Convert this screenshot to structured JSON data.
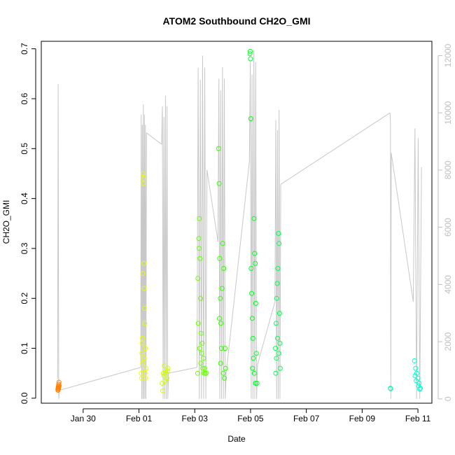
{
  "chart_data": {
    "type": "scatter",
    "title": "ATOM2 Southbound CH2O_GMI",
    "xlabel": "Date",
    "ylabel": "CH2O_GMI",
    "xlim": [
      "2017-01-28T12:00",
      "2017-02-11T12:00"
    ],
    "ylim": [
      -0.01,
      0.715
    ],
    "y2lim": [
      -150,
      12500
    ],
    "x_ticks": [
      {
        "date": "2017-01-30",
        "label": "Jan 30"
      },
      {
        "date": "2017-02-01",
        "label": "Feb 01"
      },
      {
        "date": "2017-02-03",
        "label": "Feb 03"
      },
      {
        "date": "2017-02-05",
        "label": "Feb 05"
      },
      {
        "date": "2017-02-07",
        "label": "Feb 07"
      },
      {
        "date": "2017-02-09",
        "label": "Feb 09"
      },
      {
        "date": "2017-02-11",
        "label": "Feb 11"
      }
    ],
    "y_ticks": [
      "0.0",
      "0.1",
      "0.2",
      "0.3",
      "0.4",
      "0.5",
      "0.6",
      "0.7"
    ],
    "y2_ticks": [
      "0",
      "2000",
      "4000",
      "6000",
      "8000",
      "10000",
      "12000"
    ],
    "grid": false,
    "colors": {
      "altitude": "#c8c8c8",
      "axis": "#000000",
      "right_axis": "#bebebe"
    },
    "altitude_flights": [
      {
        "start": "2017-01-29T02:00",
        "end": "2017-01-29T03:30",
        "peak": 11400,
        "entry": 700,
        "exit": 300,
        "spikes": 1
      },
      {
        "start": "2017-02-01T01:30",
        "end": "2017-02-01T06:30",
        "peak": 10300,
        "entry": 1100,
        "exit": 9300,
        "spikes": 5
      },
      {
        "start": "2017-02-01T19:30",
        "end": "2017-02-02T01:30",
        "peak": 10600,
        "entry": 8900,
        "exit": 900,
        "spikes": 4
      },
      {
        "start": "2017-02-03T02:00",
        "end": "2017-02-03T10:30",
        "peak": 12000,
        "entry": 1100,
        "exit": 8000,
        "spikes": 4
      },
      {
        "start": "2017-02-03T20:00",
        "end": "2017-02-04T03:00",
        "peak": 11600,
        "entry": 5500,
        "exit": 900,
        "spikes": 4
      },
      {
        "start": "2017-02-04T23:00",
        "end": "2017-02-05T06:00",
        "peak": 12200,
        "entry": 8300,
        "exit": 1200,
        "spikes": 4
      },
      {
        "start": "2017-02-05T21:00",
        "end": "2017-02-06T02:00",
        "peak": 10100,
        "entry": 3400,
        "exit": 7500,
        "spikes": 3
      },
      {
        "start": "2017-02-10T00:00",
        "end": "2017-02-10T01:00",
        "peak": 10000,
        "entry": 10000,
        "exit": 8600,
        "spikes": 1
      },
      {
        "start": "2017-02-10T20:00",
        "end": "2017-02-11T03:00",
        "peak": 9800,
        "entry": 3400,
        "exit": 8100,
        "spikes": 2
      }
    ],
    "series": [
      {
        "color": "#ff7f00",
        "points": [
          [
            "2017-01-29T02:15",
            0.018
          ],
          [
            "2017-01-29T02:30",
            0.021
          ],
          [
            "2017-01-29T02:45",
            0.024
          ],
          [
            "2017-01-29T03:00",
            0.028
          ],
          [
            "2017-01-29T03:15",
            0.032
          ],
          [
            "2017-01-29T02:20",
            0.016
          ],
          [
            "2017-01-29T02:50",
            0.019
          ],
          [
            "2017-01-29T03:05",
            0.022
          ],
          [
            "2017-01-29T03:20",
            0.025
          ]
        ]
      },
      {
        "color": "#e9ff00",
        "points": [
          [
            "2017-02-01T02:00",
            0.05
          ],
          [
            "2017-02-01T02:30",
            0.09
          ],
          [
            "2017-02-01T03:00",
            0.12
          ],
          [
            "2017-02-01T03:30",
            0.45
          ],
          [
            "2017-02-01T04:00",
            0.44
          ],
          [
            "2017-02-01T03:45",
            0.43
          ],
          [
            "2017-02-01T04:15",
            0.27
          ],
          [
            "2017-02-01T03:15",
            0.25
          ],
          [
            "2017-02-01T04:30",
            0.22
          ],
          [
            "2017-02-01T04:45",
            0.18
          ],
          [
            "2017-02-01T05:00",
            0.15
          ],
          [
            "2017-02-01T05:30",
            0.1
          ],
          [
            "2017-02-01T06:00",
            0.06
          ],
          [
            "2017-02-01T02:15",
            0.04
          ],
          [
            "2017-02-01T03:05",
            0.07
          ],
          [
            "2017-02-01T04:20",
            0.08
          ],
          [
            "2017-02-01T05:15",
            0.05
          ],
          [
            "2017-02-01T02:45",
            0.11
          ],
          [
            "2017-02-01T05:45",
            0.04
          ]
        ]
      },
      {
        "color": "#ccff00",
        "points": [
          [
            "2017-02-01T20:00",
            0.03
          ],
          [
            "2017-02-01T21:00",
            0.05
          ],
          [
            "2017-02-01T22:00",
            0.065
          ],
          [
            "2017-02-01T23:00",
            0.05
          ],
          [
            "2017-02-02T00:00",
            0.04
          ],
          [
            "2017-02-02T01:00",
            0.06
          ],
          [
            "2017-02-01T20:30",
            0.015
          ],
          [
            "2017-02-01T22:30",
            0.035
          ],
          [
            "2017-02-02T00:30",
            0.055
          ],
          [
            "2017-02-01T21:30",
            0.045
          ]
        ]
      },
      {
        "color": "#66ff00",
        "points": [
          [
            "2017-02-03T02:30",
            0.05
          ],
          [
            "2017-02-03T03:00",
            0.15
          ],
          [
            "2017-02-03T03:30",
            0.32
          ],
          [
            "2017-02-03T04:00",
            0.36
          ],
          [
            "2017-02-03T04:30",
            0.28
          ],
          [
            "2017-02-03T05:00",
            0.2
          ],
          [
            "2017-02-03T05:30",
            0.13
          ],
          [
            "2017-02-03T06:00",
            0.09
          ],
          [
            "2017-02-03T07:00",
            0.06
          ],
          [
            "2017-02-03T08:00",
            0.05
          ],
          [
            "2017-02-03T09:00",
            0.05
          ],
          [
            "2017-02-03T10:00",
            0.05
          ],
          [
            "2017-02-03T02:45",
            0.24
          ],
          [
            "2017-02-03T03:45",
            0.3
          ],
          [
            "2017-02-03T04:15",
            0.1
          ],
          [
            "2017-02-03T05:15",
            0.07
          ],
          [
            "2017-02-03T06:30",
            0.11
          ],
          [
            "2017-02-03T07:30",
            0.08
          ],
          [
            "2017-02-03T08:30",
            0.06
          ]
        ]
      },
      {
        "color": "#33ff00",
        "points": [
          [
            "2017-02-03T20:30",
            0.5
          ],
          [
            "2017-02-03T21:00",
            0.43
          ],
          [
            "2017-02-03T21:30",
            0.28
          ],
          [
            "2017-02-03T22:00",
            0.2
          ],
          [
            "2017-02-03T22:30",
            0.15
          ],
          [
            "2017-02-03T23:00",
            0.1
          ],
          [
            "2017-02-04T00:00",
            0.31
          ],
          [
            "2017-02-04T01:00",
            0.26
          ],
          [
            "2017-02-04T02:00",
            0.1
          ],
          [
            "2017-02-04T02:30",
            0.06
          ],
          [
            "2017-02-03T21:15",
            0.16
          ],
          [
            "2017-02-03T23:30",
            0.22
          ],
          [
            "2017-02-04T00:30",
            0.05
          ],
          [
            "2017-02-04T01:30",
            0.04
          ],
          [
            "2017-02-03T22:15",
            0.07
          ]
        ]
      },
      {
        "color": "#00ff22",
        "points": [
          [
            "2017-02-04T23:30",
            0.69
          ],
          [
            "2017-02-05T00:00",
            0.68
          ],
          [
            "2017-02-04T23:45",
            0.695
          ],
          [
            "2017-02-05T00:15",
            0.56
          ],
          [
            "2017-02-05T00:30",
            0.26
          ],
          [
            "2017-02-05T01:00",
            0.21
          ],
          [
            "2017-02-05T01:30",
            0.16
          ],
          [
            "2017-02-05T02:00",
            0.12
          ],
          [
            "2017-02-05T03:00",
            0.36
          ],
          [
            "2017-02-05T03:30",
            0.29
          ],
          [
            "2017-02-05T04:00",
            0.27
          ],
          [
            "2017-02-05T04:30",
            0.19
          ],
          [
            "2017-02-05T05:00",
            0.09
          ],
          [
            "2017-02-05T05:30",
            0.03
          ],
          [
            "2017-02-05T02:30",
            0.08
          ],
          [
            "2017-02-05T03:15",
            0.05
          ],
          [
            "2017-02-05T04:15",
            0.03
          ],
          [
            "2017-02-05T01:45",
            0.06
          ]
        ]
      },
      {
        "color": "#00ff4d",
        "points": [
          [
            "2017-02-05T21:30",
            0.1
          ],
          [
            "2017-02-05T22:00",
            0.15
          ],
          [
            "2017-02-05T22:30",
            0.2
          ],
          [
            "2017-02-05T23:00",
            0.23
          ],
          [
            "2017-02-05T23:30",
            0.26
          ],
          [
            "2017-02-06T00:00",
            0.33
          ],
          [
            "2017-02-06T00:30",
            0.31
          ],
          [
            "2017-02-06T01:00",
            0.17
          ],
          [
            "2017-02-06T01:30",
            0.06
          ],
          [
            "2017-02-05T21:45",
            0.05
          ],
          [
            "2017-02-05T22:15",
            0.08
          ],
          [
            "2017-02-05T23:15",
            0.12
          ],
          [
            "2017-02-06T00:15",
            0.09
          ],
          [
            "2017-02-06T01:15",
            0.11
          ]
        ]
      },
      {
        "color": "#00ffaa",
        "points": [
          [
            "2017-02-10T00:20",
            0.02
          ],
          [
            "2017-02-10T00:30",
            0.019
          ]
        ]
      },
      {
        "color": "#00ffcc",
        "points": [
          [
            "2017-02-10T21:00",
            0.075
          ],
          [
            "2017-02-10T22:00",
            0.06
          ],
          [
            "2017-02-10T23:00",
            0.05
          ],
          [
            "2017-02-11T00:00",
            0.04
          ],
          [
            "2017-02-11T01:00",
            0.03
          ],
          [
            "2017-02-11T02:00",
            0.02
          ],
          [
            "2017-02-10T21:30",
            0.045
          ],
          [
            "2017-02-10T22:30",
            0.035
          ],
          [
            "2017-02-11T00:30",
            0.025
          ],
          [
            "2017-02-11T01:30",
            0.018
          ]
        ]
      }
    ]
  }
}
